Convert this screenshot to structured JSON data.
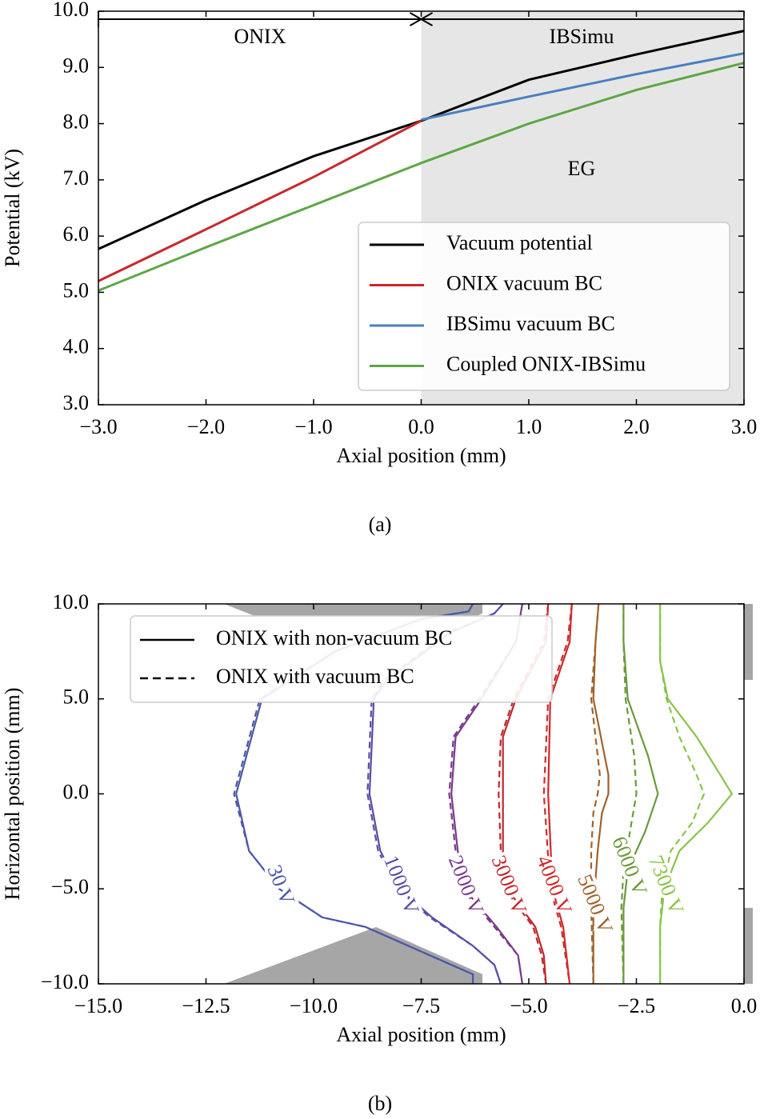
{
  "chart_data": [
    {
      "type": "line",
      "caption": "(a)",
      "xlabel": "Axial position (mm)",
      "ylabel": "Potential (kV)",
      "xlim": [
        -3,
        3
      ],
      "ylim": [
        3,
        10
      ],
      "xticks": [
        {
          "value": -3,
          "label": "−3.0"
        },
        {
          "value": -2,
          "label": "−2.0"
        },
        {
          "value": -1,
          "label": "−1.0"
        },
        {
          "value": 0,
          "label": "0.0"
        },
        {
          "value": 1,
          "label": "1.0"
        },
        {
          "value": 2,
          "label": "2.0"
        },
        {
          "value": 3,
          "label": "3.0"
        }
      ],
      "yticks": [
        {
          "value": 3,
          "label": "3.0"
        },
        {
          "value": 4,
          "label": "4.0"
        },
        {
          "value": 5,
          "label": "5.0"
        },
        {
          "value": 6,
          "label": "6.0"
        },
        {
          "value": 7,
          "label": "7.0"
        },
        {
          "value": 8,
          "label": "8.0"
        },
        {
          "value": 9,
          "label": "9.0"
        },
        {
          "value": 10,
          "label": "10.0"
        }
      ],
      "shaded_xlim": [
        0,
        3
      ],
      "annotations": [
        "ONIX",
        "IBSimu",
        "EG"
      ],
      "legend": "lower right",
      "series": [
        {
          "name": "Vacuum potential",
          "color": "#000000",
          "x": [
            -3,
            -2,
            -1,
            0,
            1,
            2,
            3
          ],
          "values": [
            5.77,
            6.64,
            7.42,
            8.05,
            8.78,
            9.23,
            9.65
          ]
        },
        {
          "name": "ONIX vacuum BC",
          "color": "#c8282c",
          "x": [
            -3,
            -2,
            -1,
            0
          ],
          "values": [
            5.2,
            6.12,
            7.05,
            8.05
          ]
        },
        {
          "name": "IBSimu vacuum BC",
          "color": "#4a7fc1",
          "x": [
            0,
            1,
            2,
            3
          ],
          "values": [
            8.07,
            8.48,
            8.88,
            9.25
          ]
        },
        {
          "name": "Coupled ONIX-IBSimu",
          "color": "#5ea646",
          "x": [
            -3,
            -2,
            -1,
            0,
            1,
            2,
            3
          ],
          "values": [
            5.03,
            5.8,
            6.55,
            7.3,
            8.0,
            8.6,
            9.08
          ]
        }
      ]
    },
    {
      "type": "contour",
      "caption": "(b)",
      "xlabel": "Axial position (mm)",
      "ylabel": "Horizontal position (mm)",
      "xlim": [
        -15,
        0
      ],
      "ylim": [
        -10,
        10
      ],
      "xticks": [
        {
          "value": -15,
          "label": "−15.0"
        },
        {
          "value": -12.5,
          "label": "−12.5"
        },
        {
          "value": -10,
          "label": "−10.0"
        },
        {
          "value": -7.5,
          "label": "−7.5"
        },
        {
          "value": -5,
          "label": "−5.0"
        },
        {
          "value": -2.5,
          "label": "−2.5"
        },
        {
          "value": 0,
          "label": "0.0"
        }
      ],
      "yticks": [
        {
          "value": -10,
          "label": "−10.0"
        },
        {
          "value": -5,
          "label": "−5.0"
        },
        {
          "value": 0,
          "label": "0.0"
        },
        {
          "value": 5,
          "label": "5.0"
        },
        {
          "value": 10,
          "label": "10.0"
        }
      ],
      "legend": "upper left",
      "legend_entries": [
        {
          "name": "ONIX with non-vacuum BC",
          "dash": "solid"
        },
        {
          "name": "ONIX with vacuum BC",
          "dash": "dashed"
        }
      ],
      "contours": [
        {
          "label": "30 V",
          "color": "#4c56a8",
          "solid": {
            "x": [
              -6.3,
              -6.4,
              -7.5,
              -9.5,
              -11.2,
              -11.8,
              -11.5,
              -10.8,
              -9.8,
              -8.8,
              -7.5,
              -6.3,
              -6.3
            ],
            "y": [
              10,
              9.6,
              9.2,
              7.5,
              5,
              0,
              -3,
              -5,
              -6.5,
              -7,
              -8.3,
              -9.5,
              -10
            ]
          },
          "dashed": {
            "x": [
              -6.3,
              -6.4,
              -7.5,
              -9.5,
              -11.25,
              -11.85,
              -11.5,
              -10.8,
              -9.8,
              -8.8,
              -7.5,
              -6.3,
              -6.3
            ],
            "y": [
              10,
              9.6,
              9.2,
              7.5,
              5,
              0,
              -3,
              -5,
              -6.5,
              -7,
              -8.3,
              -9.5,
              -10
            ]
          }
        },
        {
          "label": "1000 V",
          "color": "#5a4ea6",
          "solid": {
            "x": [
              -5.6,
              -5.8,
              -6.8,
              -8.3,
              -8.6,
              -8.7,
              -8.45,
              -8.0,
              -7.25,
              -6.3,
              -5.8,
              -5.65
            ],
            "y": [
              10,
              9.5,
              8.5,
              6,
              5,
              0,
              -3,
              -5,
              -6.5,
              -8,
              -9,
              -10
            ]
          },
          "dashed": {
            "x": [
              -5.6,
              -5.8,
              -6.85,
              -8.35,
              -8.65,
              -8.75,
              -8.5,
              -8.05,
              -7.3,
              -6.3,
              -5.8,
              -5.65
            ],
            "y": [
              10,
              9.5,
              8.5,
              6,
              5,
              0,
              -3,
              -5,
              -6.5,
              -8,
              -9,
              -10
            ]
          }
        },
        {
          "label": "2000 V",
          "color": "#7b3b8e",
          "solid": {
            "x": [
              -5.15,
              -5.3,
              -6.1,
              -6.7,
              -6.8,
              -6.65,
              -6.5,
              -5.75,
              -5.25,
              -5.15
            ],
            "y": [
              10,
              8,
              5,
              3,
              0,
              -3,
              -5,
              -7,
              -8.5,
              -10
            ]
          },
          "dashed": {
            "x": [
              -5.15,
              -5.3,
              -6.15,
              -6.75,
              -6.85,
              -6.7,
              -6.55,
              -5.8,
              -5.25,
              -5.15
            ],
            "y": [
              10,
              8,
              5,
              3,
              0,
              -3,
              -5,
              -7,
              -8.5,
              -10
            ]
          }
        },
        {
          "label": "3000 V",
          "color": "#c0282d",
          "solid": {
            "x": [
              -4.55,
              -4.6,
              -5.3,
              -5.6,
              -5.6,
              -5.6,
              -5.5,
              -4.85,
              -4.65,
              -4.6
            ],
            "y": [
              10,
              8,
              5,
              3,
              0,
              -3,
              -5,
              -7,
              -8.5,
              -10
            ]
          },
          "dashed": {
            "x": [
              -4.55,
              -4.65,
              -5.35,
              -5.65,
              -5.7,
              -5.65,
              -5.55,
              -4.9,
              -4.7,
              -4.6
            ],
            "y": [
              10,
              8,
              5,
              3,
              0,
              -3,
              -5,
              -7,
              -8.5,
              -10
            ]
          }
        },
        {
          "label": "4000 V",
          "color": "#d02a2a",
          "solid": {
            "x": [
              -4.0,
              -4.05,
              -4.5,
              -4.55,
              -4.45,
              -4.2,
              -4.05
            ],
            "y": [
              10,
              8,
              5,
              0,
              -5,
              -7,
              -10
            ]
          },
          "dashed": {
            "x": [
              -4.0,
              -4.1,
              -4.55,
              -4.65,
              -4.5,
              -4.25,
              -4.05
            ],
            "y": [
              10,
              8,
              5,
              0,
              -5,
              -7,
              -10
            ]
          }
        },
        {
          "label": "5000 V",
          "color": "#a0622b",
          "solid": {
            "x": [
              -3.38,
              -3.45,
              -3.5,
              -3.15,
              -3.15,
              -3.3,
              -3.4,
              -3.5,
              -3.5
            ],
            "y": [
              10,
              8,
              5,
              1,
              0,
              -1,
              -3,
              -6,
              -10
            ]
          },
          "dashed": {
            "x": [
              -3.38,
              -3.45,
              -3.55,
              -3.35,
              -3.4,
              -3.5,
              -3.55,
              -3.55,
              -3.5
            ],
            "y": [
              10,
              8,
              5,
              1,
              0,
              -1,
              -3,
              -6,
              -10
            ]
          }
        },
        {
          "label": "6000 V",
          "color": "#6a9a3a",
          "solid": {
            "x": [
              -2.8,
              -2.8,
              -2.7,
              -2.23,
              -2.0,
              -2.3,
              -2.7,
              -2.8,
              -2.8
            ],
            "y": [
              10,
              8,
              5,
              2,
              0,
              -2,
              -4,
              -6,
              -10
            ]
          },
          "dashed": {
            "x": [
              -2.8,
              -2.8,
              -2.75,
              -2.55,
              -2.5,
              -2.65,
              -2.8,
              -2.85,
              -2.8
            ],
            "y": [
              10,
              8,
              5,
              2,
              0,
              -2,
              -4,
              -6,
              -10
            ]
          }
        },
        {
          "label": "7300 V",
          "color": "#8bc34a",
          "solid": {
            "x": [
              -1.95,
              -1.95,
              -1.77,
              -1.1,
              -0.55,
              -0.28,
              -0.83,
              -1.5,
              -1.85,
              -1.95,
              -1.95
            ],
            "y": [
              10,
              7,
              5,
              3,
              1,
              0,
              -1.5,
              -3,
              -5,
              -7,
              -10
            ]
          },
          "dashed": {
            "x": [
              -1.95,
              -1.95,
              -1.8,
              -1.5,
              -1.1,
              -0.93,
              -1.2,
              -1.7,
              -1.9,
              -1.95,
              -1.95
            ],
            "y": [
              10,
              7,
              5,
              3,
              1,
              0,
              -1.5,
              -3,
              -5,
              -7,
              -10
            ]
          }
        }
      ]
    }
  ]
}
